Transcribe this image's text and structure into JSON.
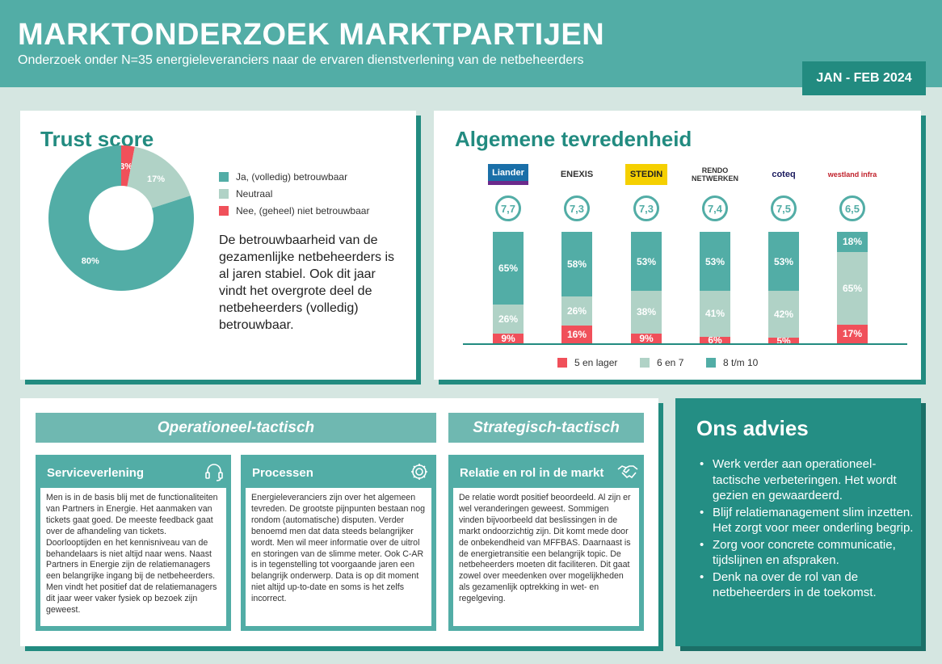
{
  "header": {
    "title": "MARKTONDERZOEK MARKTPARTIJEN",
    "subtitle": "Onderzoek onder N=35 energieleveranciers naar de ervaren dienstverlening van de netbeheerders",
    "date": "JAN - FEB 2024"
  },
  "trust": {
    "title": "Trust score",
    "text": "De betrouwbaarheid van de gezamenlijke netbeheerders is al jaren stabiel. Ook dit jaar vindt het overgrote deel de netbeheerders (volledig) betrouwbaar."
  },
  "satisfaction": {
    "title": "Algemene tevredenheid",
    "companies": [
      "Liander",
      "ENEXIS",
      "STEDIN",
      "RENDO NETWERKEN",
      "coteq",
      "westland infra"
    ],
    "scores": [
      "7,7",
      "7,3",
      "7,3",
      "7,4",
      "7,5",
      "6,5"
    ]
  },
  "chart_data": [
    {
      "type": "pie",
      "variant": "donut",
      "title": "Trust score",
      "categories": [
        "Ja, (volledig) betrouwbaar",
        "Neutraal",
        "Nee, (geheel) niet betrouwbaar"
      ],
      "values": [
        80,
        17,
        3
      ],
      "labels": [
        "80%",
        "17%",
        "3%"
      ],
      "colors": [
        "#52ada6",
        "#b0d2c6",
        "#f0505a"
      ],
      "legend": "right"
    },
    {
      "type": "bar",
      "stacked": true,
      "title": "Algemene tevredenheid",
      "categories": [
        "Liander",
        "Enexis",
        "Stedin",
        "Rendo",
        "Coteq",
        "Westland Infra"
      ],
      "series": [
        {
          "name": "5 en lager",
          "values": [
            9,
            16,
            9,
            6,
            5,
            17
          ],
          "color": "#f0505a"
        },
        {
          "name": "6 en 7",
          "values": [
            26,
            26,
            38,
            41,
            42,
            65
          ],
          "color": "#b0d2c6"
        },
        {
          "name": "8 t/m 10",
          "values": [
            65,
            58,
            53,
            53,
            53,
            18
          ],
          "color": "#52ada6"
        }
      ],
      "ylim": [
        0,
        100
      ],
      "legend": "bottom"
    }
  ],
  "sections": {
    "operational": "Operationeel-tactisch",
    "strategic": "Strategisch-tactisch"
  },
  "cards": [
    {
      "title": "Serviceverlening",
      "icon": "headset-icon",
      "text": "Men is in de basis blij met de functionaliteiten van Partners in Energie. Het aanmaken van tickets gaat goed. De meeste feedback gaat over de afhandeling van tickets. Doorlooptijden en het kennisniveau van de behandelaars is niet altijd naar wens. Naast Partners in Energie zijn de relatiemanagers een belangrijke ingang bij de netbeheerders. Men vindt het positief dat de relatiemanagers dit jaar weer vaker fysiek op bezoek zijn geweest."
    },
    {
      "title": "Processen",
      "icon": "gear-icon",
      "text": "Energieleveranciers zijn over het algemeen tevreden. De grootste pijnpunten bestaan nog rondom (automatische) disputen. Verder benoemd men dat data steeds belangrijker wordt. Men wil meer informatie over de uitrol en storingen van de slimme meter. Ook C-AR is in tegenstelling tot voorgaande jaren een belangrijk onderwerp. Data is op dit moment niet altijd up-to-date en soms is het zelfs incorrect."
    },
    {
      "title": "Relatie en rol in de markt",
      "icon": "handshake-icon",
      "text": "De relatie wordt positief beoordeeld. Al zijn er wel veranderingen geweest. Sommigen vinden bijvoorbeeld dat beslissingen in de markt ondoorzichtig zijn. Dit komt mede door de onbekendheid van MFFBAS. Daarnaast is de energietransitie een belangrijk topic. De netbeheerders moeten dit faciliteren. Dit gaat zowel over meedenken over mogelijkheden als gezamenlijk optrekking in wet- en regelgeving."
    }
  ],
  "advice": {
    "title": "Ons advies",
    "items": [
      "Werk verder aan operationeel-tactische verbeteringen. Het wordt gezien en gewaardeerd.",
      "Blijf relatiemanagement slim inzetten. Het zorgt voor meer onderling begrip.",
      "Zorg voor concrete communicatie, tijdslijnen en afspraken.",
      "Denk na over de rol van de netbeheerders in de toekomst."
    ]
  }
}
